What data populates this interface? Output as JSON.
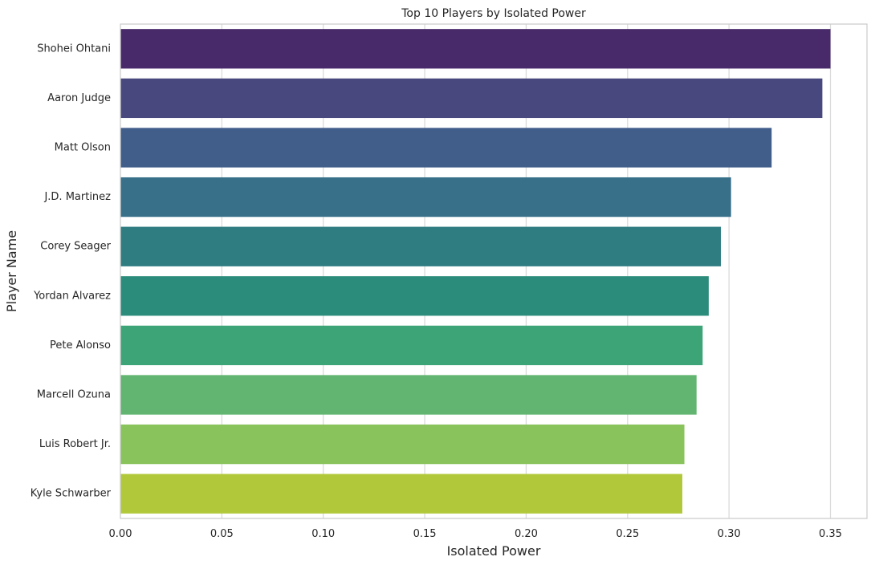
{
  "chart_data": {
    "type": "bar",
    "orientation": "horizontal",
    "title": "Top 10 Players by Isolated Power",
    "xlabel": "Isolated Power",
    "ylabel": "Player Name",
    "xlim": [
      0,
      0.368
    ],
    "xticks": [
      0,
      0.05,
      0.1,
      0.15,
      0.2,
      0.25,
      0.3,
      0.35
    ],
    "xtick_labels": [
      "0.00",
      "0.05",
      "0.10",
      "0.15",
      "0.20",
      "0.25",
      "0.30",
      "0.35"
    ],
    "grid": "vertical",
    "categories": [
      "Shohei Ohtani",
      "Aaron Judge",
      "Matt Olson",
      "J.D. Martinez",
      "Corey Seager",
      "Yordan Alvarez",
      "Pete Alonso",
      "Marcell Ozuna",
      "Luis Robert Jr.",
      "Kyle Schwarber"
    ],
    "values": [
      0.35,
      0.346,
      0.321,
      0.301,
      0.296,
      0.29,
      0.287,
      0.284,
      0.278,
      0.277
    ],
    "colors": [
      "#482a6a",
      "#48487e",
      "#415d8a",
      "#38708a",
      "#2f7c81",
      "#2c8c7b",
      "#3da478",
      "#62b570",
      "#89c35b",
      "#b2c83b"
    ]
  }
}
